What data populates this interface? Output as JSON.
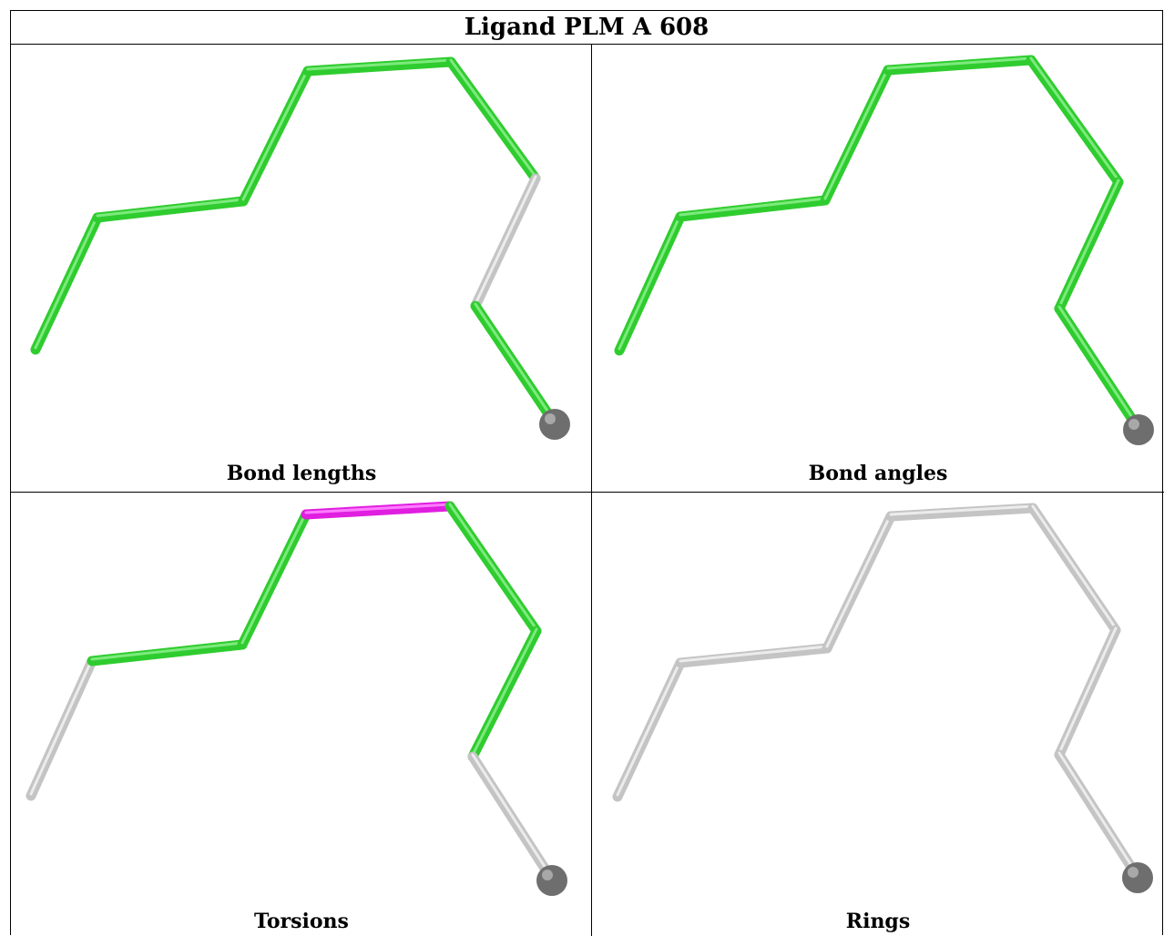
{
  "title": "Ligand PLM A 608",
  "panels": [
    {
      "caption": "Bond lengths"
    },
    {
      "caption": "Bond angles"
    },
    {
      "caption": "Torsions"
    },
    {
      "caption": "Rings"
    }
  ],
  "colors": {
    "ok_bond": "#2fcc2f",
    "ok_bond_light": "#7dea7d",
    "outlier_bond": "#e01ee0",
    "outlier_bond_light": "#ff7cff",
    "unassessed_bond": "#c4c4c4",
    "unassessed_bond_light": "#ececec",
    "atom_sphere": "#6e6e6e"
  }
}
